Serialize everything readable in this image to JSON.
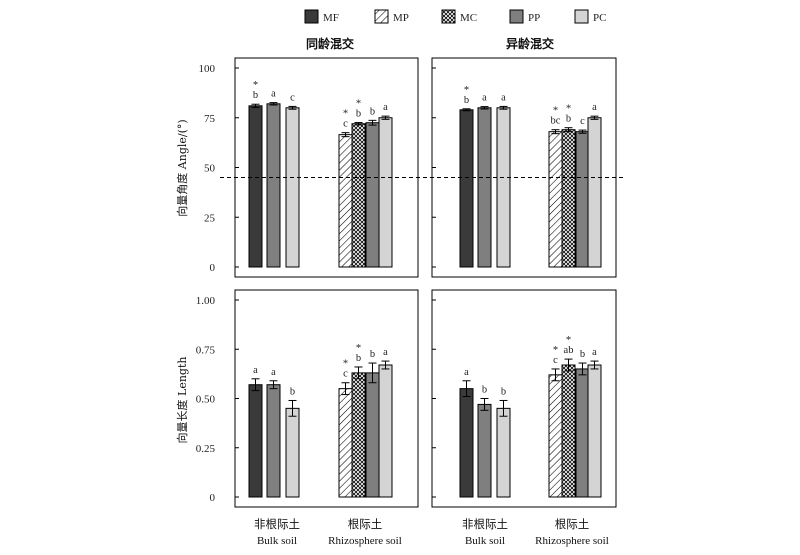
{
  "colors": {
    "MF": "#3a3a3a",
    "MP": "#ffffff",
    "MC": "#ffffff",
    "PP": "#7f7f7f",
    "PC": "#d4d4d4",
    "stroke": "#000000"
  },
  "legend": [
    {
      "key": "MF",
      "label": "MF",
      "pattern": "solid-dark"
    },
    {
      "key": "MP",
      "label": "MP",
      "pattern": "diagonal-hatch"
    },
    {
      "key": "MC",
      "label": "MC",
      "pattern": "crosshatch"
    },
    {
      "key": "PP",
      "label": "PP",
      "pattern": "solid-mid"
    },
    {
      "key": "PC",
      "label": "PC",
      "pattern": "solid-light"
    }
  ],
  "column_titles": [
    "同龄混交",
    "异龄混交"
  ],
  "row_ylabels": [
    "向量角度 Angle/(°)",
    "向量长度 Length"
  ],
  "x_categories": [
    {
      "cn": "非根际土",
      "en": "Bulk soil"
    },
    {
      "cn": "根际土",
      "en": "Rhizosphere soil"
    }
  ],
  "chart_data": [
    {
      "type": "bar",
      "row": 0,
      "col": 0,
      "title": "同龄混交",
      "ylabel": "向量角度 Angle/(°)",
      "ylim": [
        0,
        100
      ],
      "yticks": [
        0,
        25,
        50,
        75,
        100
      ],
      "ytick_labels": [
        "0",
        "25",
        "50",
        "75",
        "100"
      ],
      "reference_line": 45,
      "groups": [
        {
          "category": "非根际土 Bulk soil",
          "bars": [
            {
              "series": "MF",
              "value": 81.0,
              "error": 0.8,
              "sig": "b",
              "star": true
            },
            {
              "series": "PP",
              "value": 82.0,
              "error": 0.6,
              "sig": "a",
              "star": false
            },
            {
              "series": "PC",
              "value": 80.0,
              "error": 0.7,
              "sig": "c",
              "star": false
            }
          ]
        },
        {
          "category": "根际土 Rhizosphere soil",
          "bars": [
            {
              "series": "MP",
              "value": 66.5,
              "error": 1.0,
              "sig": "c",
              "star": true
            },
            {
              "series": "MC",
              "value": 72.0,
              "error": 0.6,
              "sig": "b",
              "star": true
            },
            {
              "series": "PP",
              "value": 72.5,
              "error": 1.2,
              "sig": "b",
              "star": false
            },
            {
              "series": "PC",
              "value": 75.0,
              "error": 0.8,
              "sig": "a",
              "star": false
            }
          ]
        }
      ]
    },
    {
      "type": "bar",
      "row": 0,
      "col": 1,
      "title": "异龄混交",
      "ylabel": "",
      "ylim": [
        0,
        100
      ],
      "yticks": [
        0,
        25,
        50,
        75,
        100
      ],
      "ytick_labels": [
        "",
        "",
        "",
        "",
        ""
      ],
      "reference_line": 45,
      "groups": [
        {
          "category": "非根际土 Bulk soil",
          "bars": [
            {
              "series": "MF",
              "value": 79.0,
              "error": 0.5,
              "sig": "b",
              "star": true
            },
            {
              "series": "PP",
              "value": 80.0,
              "error": 0.6,
              "sig": "a",
              "star": false
            },
            {
              "series": "PC",
              "value": 80.0,
              "error": 0.7,
              "sig": "a",
              "star": false
            }
          ]
        },
        {
          "category": "根际土 Rhizosphere soil",
          "bars": [
            {
              "series": "MP",
              "value": 68.0,
              "error": 1.0,
              "sig": "bc",
              "star": true
            },
            {
              "series": "MC",
              "value": 69.0,
              "error": 1.0,
              "sig": "b",
              "star": true
            },
            {
              "series": "PP",
              "value": 68.0,
              "error": 0.8,
              "sig": "c",
              "star": false
            },
            {
              "series": "PC",
              "value": 75.0,
              "error": 0.8,
              "sig": "a",
              "star": false
            }
          ]
        }
      ]
    },
    {
      "type": "bar",
      "row": 1,
      "col": 0,
      "title": "",
      "ylabel": "向量长度 Length",
      "ylim": [
        0,
        1.0
      ],
      "yticks": [
        0,
        0.25,
        0.5,
        0.75,
        1.0
      ],
      "ytick_labels": [
        "0",
        "0.25",
        "0.50",
        "0.75",
        "1.00"
      ],
      "reference_line": null,
      "groups": [
        {
          "category": "非根际土 Bulk soil",
          "bars": [
            {
              "series": "MF",
              "value": 0.57,
              "error": 0.03,
              "sig": "a",
              "star": false
            },
            {
              "series": "PP",
              "value": 0.57,
              "error": 0.02,
              "sig": "a",
              "star": false
            },
            {
              "series": "PC",
              "value": 0.45,
              "error": 0.04,
              "sig": "b",
              "star": false
            }
          ]
        },
        {
          "category": "根际土 Rhizosphere soil",
          "bars": [
            {
              "series": "MP",
              "value": 0.55,
              "error": 0.03,
              "sig": "c",
              "star": true
            },
            {
              "series": "MC",
              "value": 0.63,
              "error": 0.03,
              "sig": "b",
              "star": true
            },
            {
              "series": "PP",
              "value": 0.63,
              "error": 0.05,
              "sig": "b",
              "star": false
            },
            {
              "series": "PC",
              "value": 0.67,
              "error": 0.02,
              "sig": "a",
              "star": false
            }
          ]
        }
      ]
    },
    {
      "type": "bar",
      "row": 1,
      "col": 1,
      "title": "",
      "ylabel": "",
      "ylim": [
        0,
        1.0
      ],
      "yticks": [
        0,
        0.25,
        0.5,
        0.75,
        1.0
      ],
      "ytick_labels": [
        "",
        "",
        "",
        "",
        ""
      ],
      "reference_line": null,
      "groups": [
        {
          "category": "非根际土 Bulk soil",
          "bars": [
            {
              "series": "MF",
              "value": 0.55,
              "error": 0.04,
              "sig": "a",
              "star": false
            },
            {
              "series": "PP",
              "value": 0.47,
              "error": 0.03,
              "sig": "b",
              "star": false
            },
            {
              "series": "PC",
              "value": 0.45,
              "error": 0.04,
              "sig": "b",
              "star": false
            }
          ]
        },
        {
          "category": "根际土 Rhizosphere soil",
          "bars": [
            {
              "series": "MP",
              "value": 0.62,
              "error": 0.03,
              "sig": "c",
              "star": true
            },
            {
              "series": "MC",
              "value": 0.67,
              "error": 0.03,
              "sig": "ab",
              "star": true
            },
            {
              "series": "PP",
              "value": 0.65,
              "error": 0.03,
              "sig": "b",
              "star": false
            },
            {
              "series": "PC",
              "value": 0.67,
              "error": 0.02,
              "sig": "a",
              "star": false
            }
          ]
        }
      ]
    }
  ]
}
